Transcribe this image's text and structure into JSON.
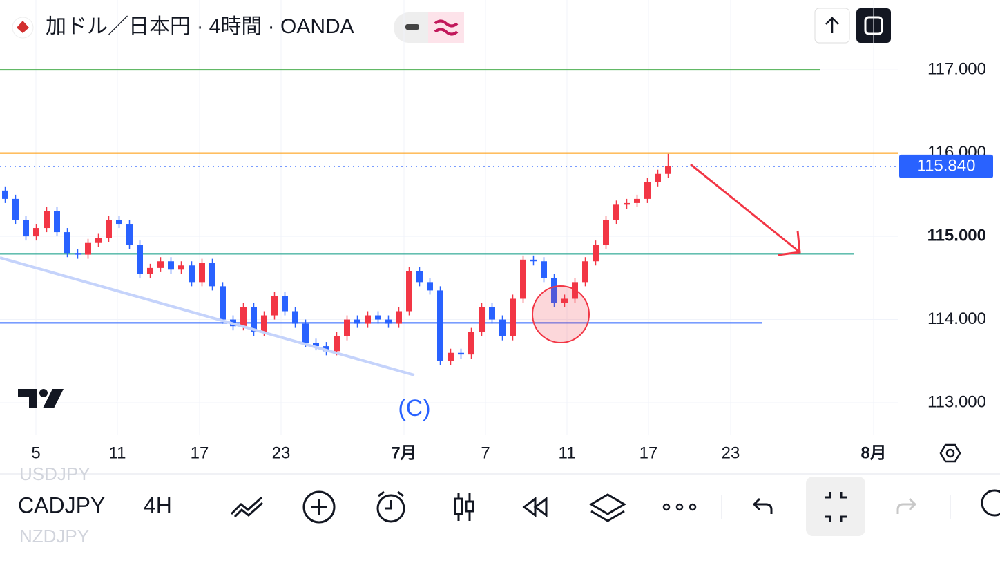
{
  "header": {
    "title": "加ドル／日本円 · 4時間 · OANDA"
  },
  "chart_data": {
    "type": "candlestick",
    "open": [
      115.55,
      115.45,
      115.2,
      115.0,
      115.1,
      115.3,
      115.05,
      114.8,
      114.78,
      114.92,
      114.98,
      115.2,
      115.15,
      114.9,
      114.55,
      114.62,
      114.7,
      114.6,
      114.65,
      114.45,
      114.68,
      114.4,
      114.0,
      113.92,
      114.15,
      113.85,
      114.05,
      114.28,
      114.1,
      113.95,
      113.72,
      113.68,
      113.62,
      113.8,
      114.0,
      113.95,
      114.05,
      114.0,
      113.95,
      114.1,
      114.58,
      114.45,
      114.35,
      113.5,
      113.6,
      113.58,
      113.85,
      114.15,
      114.0,
      113.8,
      114.25,
      114.72,
      114.7,
      114.5,
      114.2,
      114.25,
      114.45,
      114.7,
      114.9,
      115.2,
      115.38,
      115.4,
      115.45,
      115.65,
      115.75
    ],
    "high": [
      115.6,
      115.5,
      115.25,
      115.15,
      115.35,
      115.35,
      115.1,
      114.85,
      114.97,
      115.03,
      115.25,
      115.25,
      115.2,
      114.95,
      114.67,
      114.75,
      114.75,
      114.7,
      114.7,
      114.73,
      114.73,
      114.45,
      114.05,
      114.2,
      114.2,
      114.1,
      114.33,
      114.33,
      114.15,
      114.0,
      113.77,
      113.73,
      113.85,
      114.05,
      114.05,
      114.1,
      114.1,
      114.05,
      114.15,
      114.63,
      114.63,
      114.5,
      114.4,
      113.65,
      113.65,
      113.9,
      114.2,
      114.2,
      114.05,
      114.3,
      114.77,
      114.77,
      114.75,
      114.55,
      114.3,
      114.5,
      114.75,
      114.95,
      115.25,
      115.43,
      115.45,
      115.5,
      115.7,
      115.8,
      115.99
    ],
    "low": [
      115.4,
      115.15,
      114.95,
      114.95,
      115.05,
      115.0,
      114.75,
      114.73,
      114.73,
      114.87,
      114.93,
      115.1,
      114.85,
      114.5,
      114.5,
      114.57,
      114.55,
      114.55,
      114.4,
      114.4,
      114.35,
      113.95,
      113.87,
      113.87,
      113.8,
      113.8,
      114.0,
      114.05,
      113.9,
      113.67,
      113.63,
      113.57,
      113.57,
      113.75,
      113.9,
      113.9,
      113.95,
      113.9,
      113.9,
      114.05,
      114.4,
      114.3,
      113.45,
      113.45,
      113.53,
      113.53,
      113.8,
      113.95,
      113.75,
      113.75,
      114.2,
      114.65,
      114.45,
      114.15,
      114.15,
      114.2,
      114.4,
      114.65,
      114.85,
      115.15,
      115.33,
      115.35,
      115.4,
      115.6,
      115.7
    ],
    "close": [
      115.45,
      115.2,
      115.0,
      115.1,
      115.3,
      115.05,
      114.8,
      114.78,
      114.92,
      114.98,
      115.2,
      115.15,
      114.9,
      114.55,
      114.62,
      114.7,
      114.6,
      114.65,
      114.45,
      114.68,
      114.4,
      114.0,
      113.92,
      114.15,
      113.85,
      114.05,
      114.28,
      114.1,
      113.95,
      113.72,
      113.68,
      113.62,
      113.8,
      114.0,
      113.95,
      114.05,
      114.0,
      113.95,
      114.1,
      114.58,
      114.45,
      114.35,
      113.5,
      113.6,
      113.58,
      113.85,
      114.15,
      114.0,
      113.8,
      114.25,
      114.72,
      114.7,
      114.5,
      114.2,
      114.25,
      114.45,
      114.7,
      114.9,
      115.2,
      115.38,
      115.4,
      115.45,
      115.65,
      115.75,
      115.84
    ],
    "up_color": "#f23645",
    "down_color": "#2962ff",
    "ylim": [
      112.61,
      117.84
    ],
    "yticks": [
      {
        "value": 113,
        "label": "113.000"
      },
      {
        "value": 114,
        "label": "114.000"
      },
      {
        "value": 115,
        "label": "115.000"
      },
      {
        "value": 116,
        "label": "116.000"
      },
      {
        "value": 117,
        "label": "117.000"
      }
    ],
    "xticks": [
      "5",
      "11",
      "17",
      "23",
      "7月",
      "7",
      "11",
      "17",
      "23",
      "8月"
    ],
    "last_price": {
      "value": 115.84,
      "label": "115.840"
    },
    "levels": [
      {
        "value": 117,
        "color": "#4caf50"
      },
      {
        "value": 116,
        "color": "#ff9800"
      },
      {
        "value": 114.79,
        "color": "#089981"
      },
      {
        "value": 113.96,
        "color": "#2962ff"
      }
    ],
    "annotation": "(C)"
  },
  "toolbar": {
    "symbol": "CADJPY",
    "interval": "4H",
    "above": "USDJPY",
    "below": "NZDJPY"
  }
}
